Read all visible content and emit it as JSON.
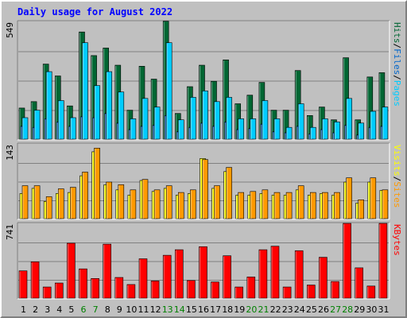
{
  "title": "Daily usage for August 2022",
  "colors": {
    "hits": "#006633",
    "files": "#0066cc",
    "pages": "#00ccff",
    "visits": "#ffff00",
    "sites": "#ff9900",
    "kbytes": "#ff0000",
    "weekday_label": "#000000",
    "weekend_label": "#008000"
  },
  "legend": {
    "panel1": [
      {
        "label": "Pages",
        "color": "#00ccff"
      },
      {
        "label": "Files",
        "color": "#0066cc"
      },
      {
        "label": "Hits",
        "color": "#006633"
      }
    ],
    "panel2": [
      {
        "label": "Sites",
        "color": "#ff9900"
      },
      {
        "label": "Visits",
        "color": "#ffff00"
      }
    ],
    "panel3": [
      {
        "label": "KBytes",
        "color": "#ff0000"
      }
    ],
    "separator": "/"
  },
  "chart_data": {
    "type": "bar",
    "title": "Daily usage for August 2022",
    "categories": [
      "1",
      "2",
      "3",
      "4",
      "5",
      "6",
      "7",
      "8",
      "9",
      "10",
      "11",
      "12",
      "13",
      "14",
      "15",
      "16",
      "17",
      "18",
      "19",
      "20",
      "21",
      "22",
      "23",
      "24",
      "25",
      "26",
      "27",
      "28",
      "29",
      "30",
      "31"
    ],
    "weekend_days": [
      "6",
      "7",
      "13",
      "14",
      "20",
      "21",
      "27",
      "28"
    ],
    "panels": [
      {
        "name": "hits-files-pages",
        "ymax_label": "549",
        "ymax": 549,
        "series": [
          {
            "name": "Hits",
            "values": [
              145,
              175,
              350,
              295,
              155,
              500,
              390,
              425,
              345,
              135,
              340,
              280,
              550,
              120,
              245,
              345,
              270,
              370,
              165,
              205,
              265,
              135,
              135,
              320,
              110,
              150,
              90,
              380,
              90,
              290,
              310
            ]
          },
          {
            "name": "Files",
            "values": [
              60,
              55,
              95,
              80,
              60,
              105,
              100,
              120,
              75,
              45,
              60,
              65,
              110,
              35,
              55,
              75,
              60,
              80,
              45,
              50,
              70,
              35,
              30,
              60,
              25,
              45,
              30,
              65,
              20,
              55,
              60
            ]
          },
          {
            "name": "Pages",
            "values": [
              100,
              135,
              315,
              180,
              100,
              450,
              250,
              315,
              220,
              95,
              190,
              150,
              450,
              90,
              195,
              225,
              175,
              195,
              95,
              95,
              180,
              95,
              55,
              165,
              55,
              95,
              80,
              190,
              75,
              130,
              150
            ]
          }
        ]
      },
      {
        "name": "visits-sites",
        "ymax_label": "143",
        "ymax": 143,
        "series": [
          {
            "name": "Visits",
            "values": [
              48,
              58,
              33,
              48,
              50,
              82,
              128,
              65,
              55,
              45,
              73,
              52,
              58,
              45,
              48,
              115,
              58,
              90,
              45,
              45,
              48,
              45,
              45,
              55,
              45,
              48,
              45,
              70,
              30,
              70,
              54
            ]
          },
          {
            "name": "Sites",
            "values": [
              63,
              63,
              42,
              57,
              60,
              89,
              135,
              70,
              65,
              55,
              75,
              55,
              63,
              50,
              55,
              113,
              63,
              98,
              50,
              52,
              55,
              50,
              50,
              63,
              50,
              50,
              50,
              78,
              36,
              78,
              55
            ]
          }
        ]
      },
      {
        "name": "kbytes",
        "ymax_label": "741",
        "ymax": 741,
        "series": [
          {
            "name": "KBytes",
            "values": [
              270,
              360,
              110,
              150,
              545,
              290,
              195,
              535,
              205,
              135,
              390,
              170,
              425,
              480,
              175,
              510,
              160,
              420,
              110,
              210,
              480,
              515,
              110,
              470,
              130,
              405,
              165,
              741,
              300,
              120,
              741
            ]
          }
        ]
      }
    ],
    "grid": true,
    "legend_position": "right-vertical"
  }
}
